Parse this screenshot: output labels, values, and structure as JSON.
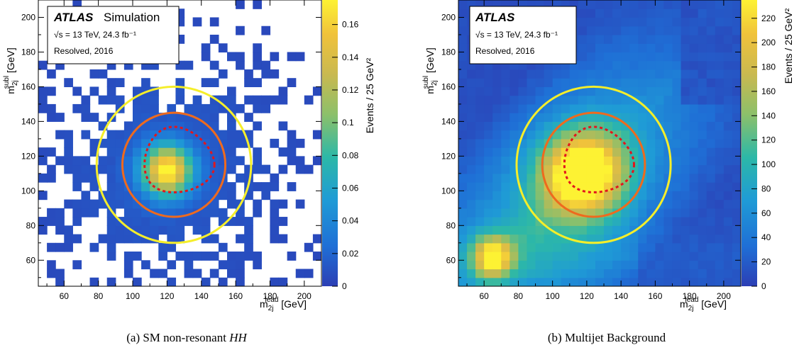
{
  "chart_data": [
    {
      "type": "heatmap",
      "caption": "(a) SM non-resonant HH",
      "caption_prefix": "(a) SM non-resonant",
      "caption_math": "HH",
      "atlas_label": "ATLAS",
      "atlas_suffix": "Simulation",
      "energy_label": "√s = 13 TeV, 24.3 fb⁻¹",
      "region_label": "Resolved, 2016",
      "xlabel": "m_2j^lead [GeV]",
      "ylabel": "m_2j^subl [GeV]",
      "zlabel": "Events / 25 GeV²",
      "xlim": [
        45,
        210
      ],
      "ylim": [
        45,
        210
      ],
      "xticks": [
        60,
        80,
        100,
        120,
        140,
        160,
        180,
        200
      ],
      "yticks": [
        60,
        80,
        100,
        120,
        140,
        160,
        180,
        200
      ],
      "zlim": [
        0,
        0.175
      ],
      "zticks": [
        0,
        0.02,
        0.04,
        0.06,
        0.08,
        0.1,
        0.12,
        0.14,
        0.16
      ],
      "peak": [
        120,
        112
      ],
      "peak_value": 0.17,
      "sparse_low_bins": true,
      "signal_region_contour": "dashed red Xhh = 1.6 around (124, 115)",
      "validation_region_radius": 30,
      "control_region_radius": 45,
      "region_center": [
        124,
        115
      ]
    },
    {
      "type": "heatmap",
      "caption": "(b) Multijet Background",
      "atlas_label": "ATLAS",
      "atlas_suffix": "",
      "energy_label": "√s = 13 TeV, 24.3 fb⁻¹",
      "region_label": "Resolved, 2016",
      "xlabel": "m_2j^lead [GeV]",
      "ylabel": "m_2j^subl [GeV]",
      "zlabel": "Events / 25 GeV²",
      "xlim": [
        45,
        210
      ],
      "ylim": [
        45,
        210
      ],
      "xticks": [
        60,
        80,
        100,
        120,
        140,
        160,
        180,
        200
      ],
      "yticks": [
        60,
        80,
        100,
        120,
        140,
        160,
        180,
        200
      ],
      "zlim": [
        0,
        235
      ],
      "zticks": [
        0,
        20,
        40,
        60,
        80,
        100,
        120,
        140,
        160,
        180,
        200,
        220
      ],
      "peak": [
        118,
        110
      ],
      "peak_value": 230,
      "secondary_peak": [
        65,
        62
      ],
      "secondary_peak_value": 180,
      "signal_region_contour": "dashed red Xhh = 1.6 around (124, 115)",
      "validation_region_radius": 30,
      "control_region_radius": 45,
      "region_center": [
        124,
        115
      ]
    }
  ]
}
